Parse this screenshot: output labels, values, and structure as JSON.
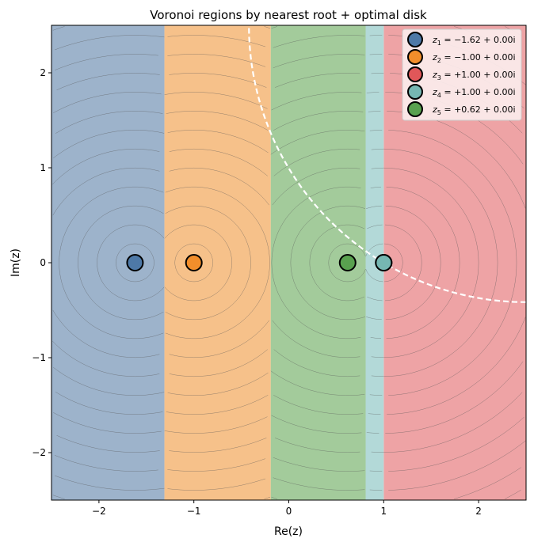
{
  "chart_data": {
    "type": "voronoi-region-map",
    "title": "Voronoi regions by nearest root + optimal disk",
    "xlabel": "Re(z)",
    "ylabel": "Im(z)",
    "xlim": [
      -2.5,
      2.5
    ],
    "ylim": [
      -2.5,
      2.5
    ],
    "xticks": [
      -2,
      -1,
      0,
      1,
      2
    ],
    "yticks": [
      -2,
      -1,
      0,
      1,
      2
    ],
    "xtick_labels": [
      "−2",
      "−1",
      "0",
      "1",
      "2"
    ],
    "ytick_labels": [
      "−2",
      "−1",
      "0",
      "1",
      "2"
    ],
    "legend_position": "top-right",
    "contour_spacing": 0.2,
    "roots": [
      {
        "name": "z1",
        "label_sub": "1",
        "label_value": "= −1.62 + 0.00i",
        "re": -1.62,
        "im": 0,
        "color": "#4e79a7",
        "region_color": "#9db3cb",
        "region": [
          -2.5,
          -1.31
        ]
      },
      {
        "name": "z2",
        "label_sub": "2",
        "label_value": "= −1.00 + 0.00i",
        "re": -1.0,
        "im": 0,
        "color": "#f28e2b",
        "region_color": "#f6c18a",
        "region": [
          -1.31,
          -0.19
        ]
      },
      {
        "name": "z3",
        "label_sub": "3",
        "label_value": "= +1.00 + 0.00i",
        "re": 1.0,
        "im": 0,
        "color": "#e15759",
        "region_color": "#eea3a5",
        "region": [
          1.0,
          2.5
        ]
      },
      {
        "name": "z4",
        "label_sub": "4",
        "label_value": "= +1.00 + 0.00i",
        "re": 1.0,
        "im": 0,
        "color": "#76b7b2",
        "region_color": "#b3d9d8",
        "region": [
          0.81,
          1.0
        ]
      },
      {
        "name": "z5",
        "label_sub": "5",
        "label_value": "= +0.62 + 0.00i",
        "re": 0.62,
        "im": 0,
        "color": "#59a14f",
        "region_color": "#a3cb9b",
        "region": [
          -0.19,
          0.81
        ]
      }
    ],
    "optimal_disk": {
      "center_re": 2.5,
      "center_im": 2.5,
      "radius": 2.92,
      "style": "dashed",
      "color": "#ffffff"
    }
  }
}
